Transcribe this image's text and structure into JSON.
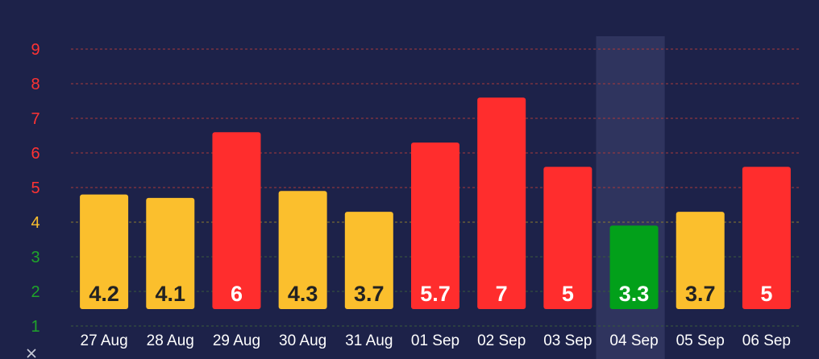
{
  "chart_data": {
    "type": "bar",
    "categories": [
      "27 Aug",
      "28 Aug",
      "29 Aug",
      "30 Aug",
      "31 Aug",
      "01 Sep",
      "02 Sep",
      "03 Sep",
      "04 Sep",
      "05 Sep",
      "06 Sep"
    ],
    "values": [
      4.2,
      4.1,
      6,
      4.3,
      3.7,
      5.7,
      7,
      5,
      3.3,
      3.7,
      5
    ],
    "bar_value_labels": [
      "4.2",
      "4.1",
      "6",
      "4.3",
      "3.7",
      "5.7",
      "7",
      "5",
      "3.3",
      "3.7",
      "5"
    ],
    "bar_colors": [
      "#fbbf2d",
      "#fbbf2d",
      "#ff2d2d",
      "#fbbf2d",
      "#fbbf2d",
      "#ff2d2d",
      "#ff2d2d",
      "#ff2d2d",
      "#02a01a",
      "#fbbf2d",
      "#ff2d2d"
    ],
    "label_colors": [
      "#222222",
      "#222222",
      "#ffffff",
      "#222222",
      "#222222",
      "#ffffff",
      "#ffffff",
      "#ffffff",
      "#ffffff",
      "#222222",
      "#ffffff"
    ],
    "highlighted_category": "04 Sep",
    "y_ticks": [
      "1",
      "2",
      "3",
      "4",
      "5",
      "6",
      "7",
      "8",
      "9"
    ],
    "y_tick_colors": [
      "#1fa52a",
      "#1fa52a",
      "#1fa52a",
      "#fbbf2d",
      "#ff3333",
      "#ff3333",
      "#ff3333",
      "#ff3333",
      "#ff3333"
    ],
    "ylim": [
      1,
      9
    ],
    "grid": true,
    "grid_colors": {
      "low": "#3a5a3a",
      "mid": "#8a7a30",
      "high": "#a83a3a"
    },
    "title": "",
    "xlabel": "",
    "ylabel": ""
  }
}
